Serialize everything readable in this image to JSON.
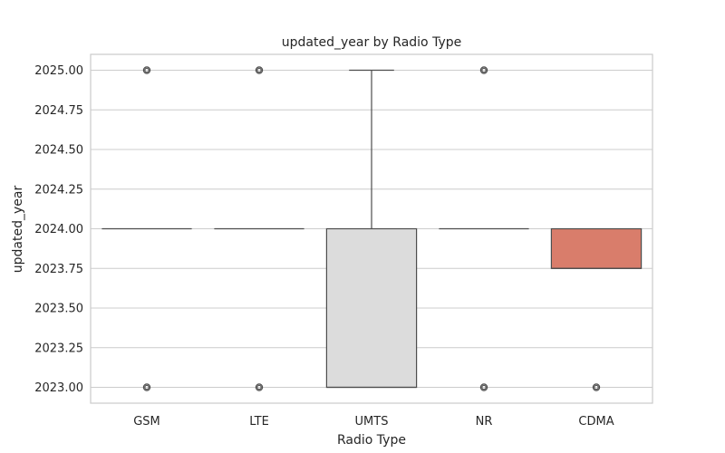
{
  "chart_data": {
    "type": "box",
    "title": "updated_year by Radio Type",
    "xlabel": "Radio Type",
    "ylabel": "updated_year",
    "ylim": [
      2022.9,
      2025.1
    ],
    "yticks": [
      2023.0,
      2023.25,
      2023.5,
      2023.75,
      2024.0,
      2024.25,
      2024.5,
      2024.75,
      2025.0
    ],
    "ytick_labels": [
      "2023.00",
      "2023.25",
      "2023.50",
      "2023.75",
      "2024.00",
      "2024.25",
      "2024.50",
      "2024.75",
      "2025.00"
    ],
    "grid": true,
    "categories": [
      "GSM",
      "LTE",
      "UMTS",
      "NR",
      "CDMA"
    ],
    "boxes": [
      {
        "category": "GSM",
        "whisker_low": 2024.0,
        "q1": 2024.0,
        "median": 2024.0,
        "q3": 2024.0,
        "whisker_high": 2024.0,
        "fliers": [
          2023.0,
          2025.0
        ],
        "color": "#e5e5e5"
      },
      {
        "category": "LTE",
        "whisker_low": 2024.0,
        "q1": 2024.0,
        "median": 2024.0,
        "q3": 2024.0,
        "whisker_high": 2024.0,
        "fliers": [
          2023.0,
          2025.0
        ],
        "color": "#e5e5e5"
      },
      {
        "category": "UMTS",
        "whisker_low": 2023.0,
        "q1": 2023.0,
        "median": 2023.0,
        "q3": 2024.0,
        "whisker_high": 2025.0,
        "fliers": [],
        "color": "#dcdcdc"
      },
      {
        "category": "NR",
        "whisker_low": 2024.0,
        "q1": 2024.0,
        "median": 2024.0,
        "q3": 2024.0,
        "whisker_high": 2024.0,
        "fliers": [
          2023.0,
          2025.0
        ],
        "color": "#e5e5e5"
      },
      {
        "category": "CDMA",
        "whisker_low": 2023.75,
        "q1": 2023.75,
        "median": 2023.75,
        "q3": 2024.0,
        "whisker_high": 2024.0,
        "fliers": [
          2023.0
        ],
        "color": "#d97d6b"
      }
    ]
  }
}
